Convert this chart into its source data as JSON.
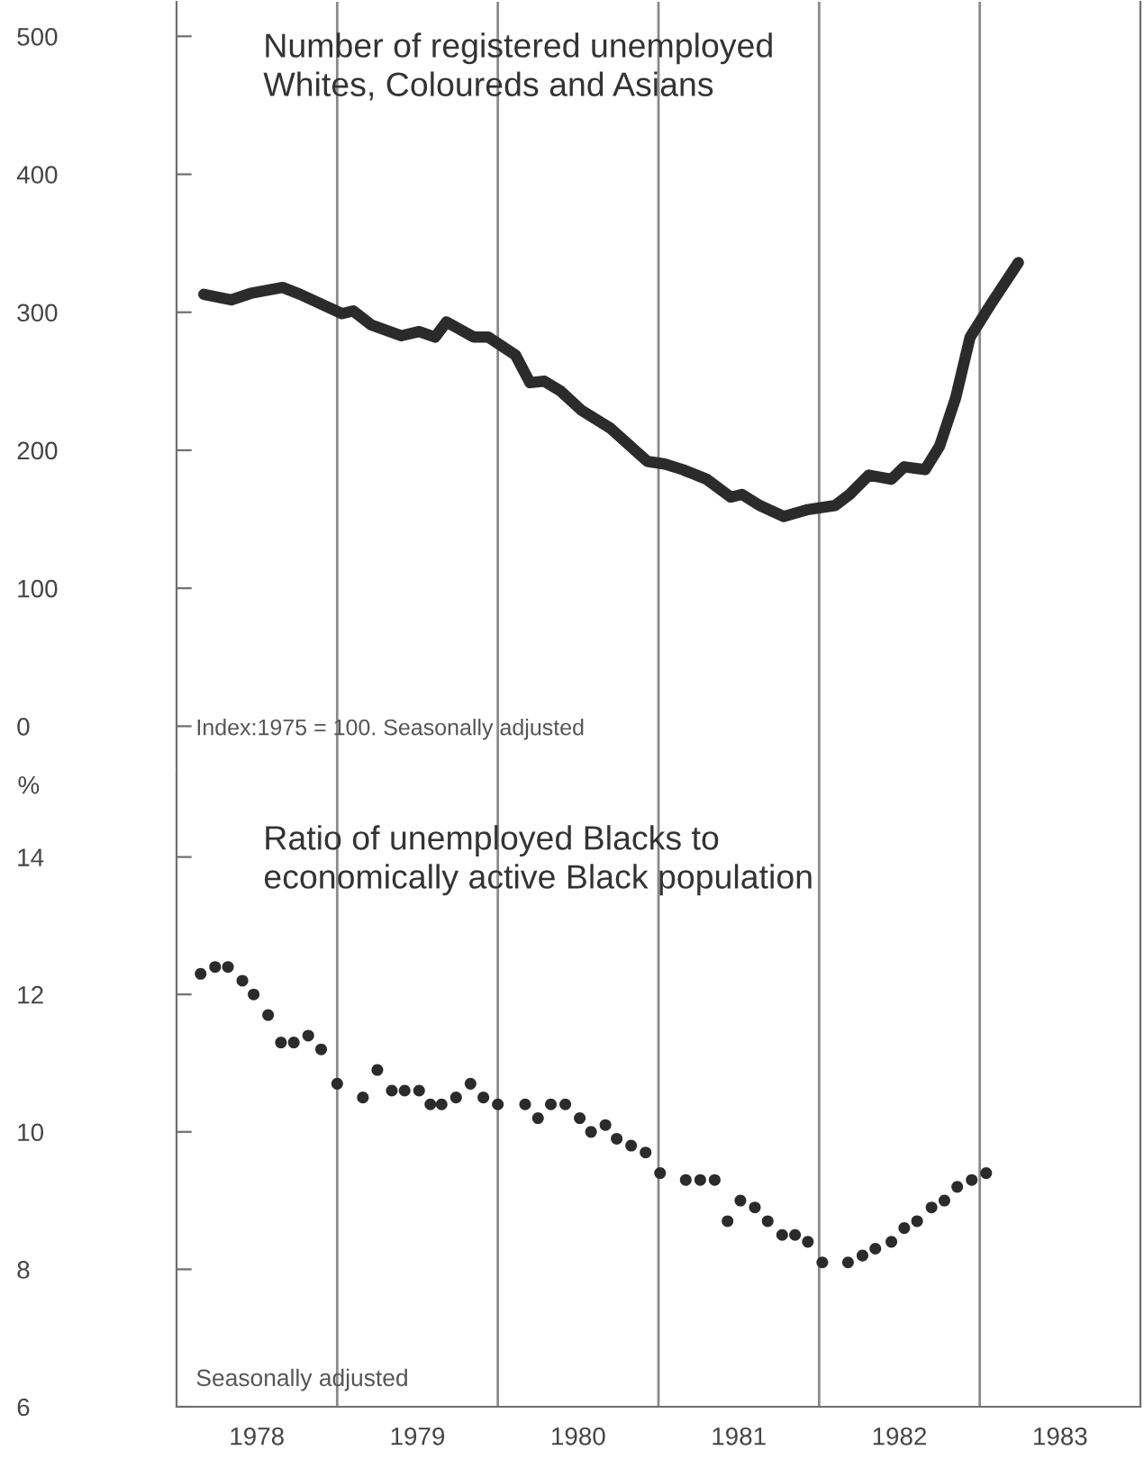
{
  "chart_data": [
    {
      "type": "line",
      "title": "Number of registered unemployed\nWhites, Coloureds and Asians",
      "annotations": [
        "Index:1975 = 100. Seasonally adjusted"
      ],
      "series": [
        {
          "color": "#2b2b2b",
          "x": [
            1978.17,
            1978.34,
            1978.47,
            1978.66,
            1978.77,
            1979.03,
            1979.1,
            1979.21,
            1979.4,
            1979.51,
            1979.61,
            1979.68,
            1979.85,
            1979.94,
            1980.11,
            1980.2,
            1980.29,
            1980.39,
            1980.52,
            1980.7,
            1980.93,
            1981.04,
            1981.15,
            1981.3,
            1981.45,
            1981.52,
            1981.63,
            1981.78,
            1981.93,
            1982.1,
            1982.19,
            1982.31,
            1982.45,
            1982.53,
            1982.66,
            1982.75,
            1982.85,
            1982.94,
            1983.07,
            1983.24
          ],
          "values": [
            313,
            309,
            314,
            318,
            313,
            299,
            301,
            291,
            283,
            286,
            282,
            293,
            282,
            282,
            269,
            249,
            250,
            243,
            229,
            216,
            192,
            190,
            186,
            179,
            166,
            168,
            160,
            152,
            157,
            160,
            168,
            182,
            179,
            188,
            186,
            203,
            238,
            282,
            306,
            336
          ]
        }
      ],
      "xlim": [
        1978,
        1984
      ],
      "ylim": [
        -35,
        525
      ],
      "yticks": [
        0,
        100,
        200,
        300,
        400,
        500
      ],
      "tick_labels": "y",
      "grid": false,
      "legend": false,
      "marker": "none",
      "line_style": "solid",
      "ref_lines": [
        {
          "axis": "x",
          "value": 1979,
          "color": "#8a8a8a"
        },
        {
          "axis": "x",
          "value": 1980,
          "color": "#8a8a8a"
        },
        {
          "axis": "x",
          "value": 1981,
          "color": "#8a8a8a"
        },
        {
          "axis": "x",
          "value": 1982,
          "color": "#8a8a8a"
        },
        {
          "axis": "x",
          "value": 1983,
          "color": "#8a8a8a"
        }
      ]
    },
    {
      "type": "scatter",
      "title": "Ratio of unemployed Blacks to\neconomically active Black population",
      "ylabel": "%",
      "annotations": [
        "Seasonally adjusted"
      ],
      "series": [
        {
          "color": "#2b2b2b",
          "x": [
            1978.15,
            1978.24,
            1978.32,
            1978.41,
            1978.48,
            1978.57,
            1978.65,
            1978.73,
            1978.82,
            1978.9,
            1979.0,
            1979.16,
            1979.25,
            1979.34,
            1979.42,
            1979.51,
            1979.58,
            1979.65,
            1979.74,
            1979.83,
            1979.91,
            1980.0,
            1980.17,
            1980.25,
            1980.33,
            1980.42,
            1980.51,
            1980.58,
            1980.67,
            1980.74,
            1980.83,
            1980.92,
            1981.01,
            1981.17,
            1981.26,
            1981.35,
            1981.43,
            1981.51,
            1981.6,
            1981.68,
            1981.77,
            1981.85,
            1981.93,
            1982.02,
            1982.18,
            1982.27,
            1982.35,
            1982.45,
            1982.53,
            1982.61,
            1982.7,
            1982.78,
            1982.86,
            1982.95,
            1983.04
          ],
          "values": [
            12.3,
            12.4,
            12.4,
            12.2,
            12.0,
            11.7,
            11.3,
            11.3,
            11.4,
            11.2,
            10.7,
            10.5,
            10.9,
            10.6,
            10.6,
            10.6,
            10.4,
            10.4,
            10.5,
            10.7,
            10.5,
            10.4,
            10.4,
            10.2,
            10.4,
            10.4,
            10.2,
            10.0,
            10.1,
            9.9,
            9.8,
            9.7,
            9.4,
            9.3,
            9.3,
            9.3,
            8.7,
            9.0,
            8.9,
            8.7,
            8.5,
            8.5,
            8.4,
            8.1,
            8.1,
            8.2,
            8.3,
            8.4,
            8.6,
            8.7,
            8.9,
            9.0,
            9.2,
            9.3,
            9.4
          ]
        }
      ],
      "xlim": [
        1978,
        1984
      ],
      "xticks": [
        {
          "value": 1978.5,
          "label": "1978"
        },
        {
          "value": 1979.5,
          "label": "1979"
        },
        {
          "value": 1980.5,
          "label": "1980"
        },
        {
          "value": 1981.5,
          "label": "1981"
        },
        {
          "value": 1982.5,
          "label": "1982"
        },
        {
          "value": 1983.5,
          "label": "1983"
        }
      ],
      "ylim": [
        6,
        15.2
      ],
      "yticks": [
        6,
        8,
        10,
        12,
        14
      ],
      "grid": false,
      "legend": false,
      "marker": "circle",
      "ref_lines": [
        {
          "axis": "x",
          "value": 1979,
          "color": "#8a8a8a"
        },
        {
          "axis": "x",
          "value": 1980,
          "color": "#8a8a8a"
        },
        {
          "axis": "x",
          "value": 1981,
          "color": "#8a8a8a"
        },
        {
          "axis": "x",
          "value": 1982,
          "color": "#8a8a8a"
        },
        {
          "axis": "x",
          "value": 1983,
          "color": "#8a8a8a"
        }
      ]
    }
  ]
}
